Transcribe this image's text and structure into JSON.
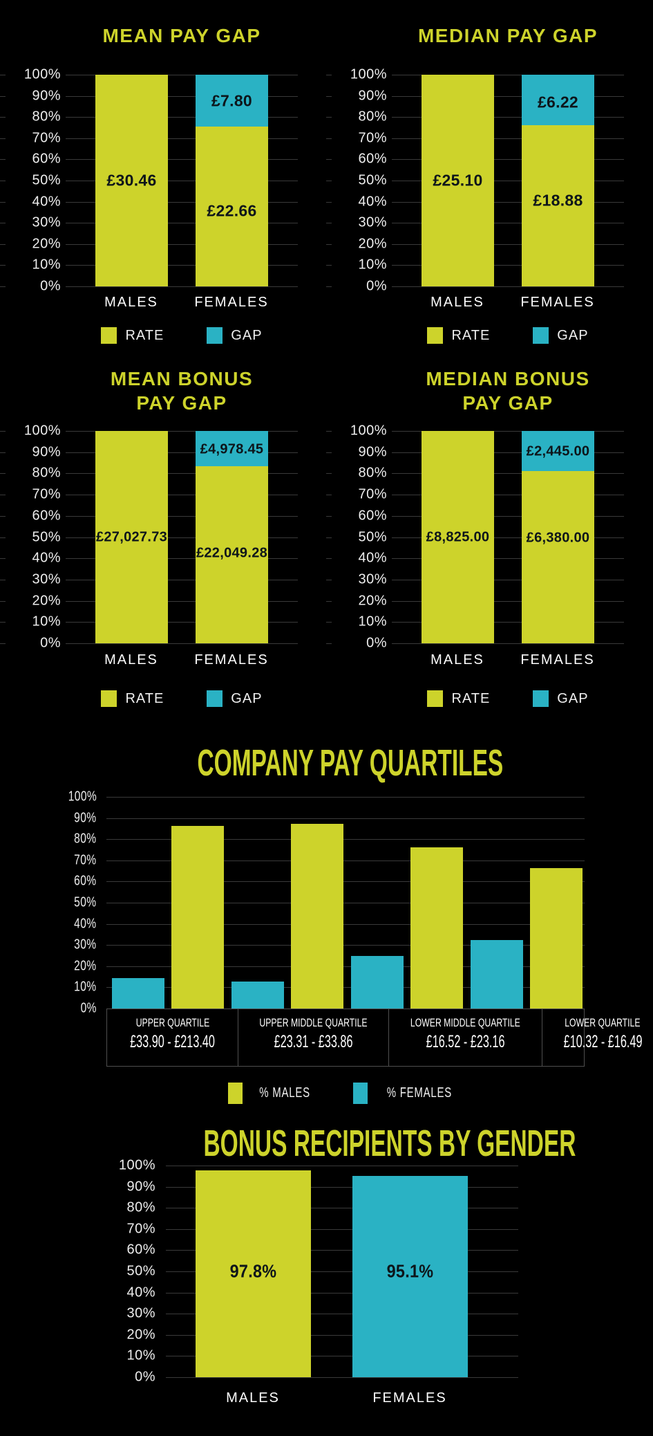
{
  "colors": {
    "yellow": "#cdd32b",
    "blue": "#2ab2c4",
    "background": "#000000",
    "grid": "#3a3a3a",
    "tick_text": "#ededed",
    "value_text": "#0d151a",
    "box_border": "#4f4f4f"
  },
  "axis": {
    "ticks": [
      "100%",
      "90%",
      "80%",
      "70%",
      "60%",
      "50%",
      "40%",
      "30%",
      "20%",
      "10%",
      "0%"
    ]
  },
  "panels": {
    "mean_pay": {
      "title": "MEAN PAY GAP",
      "x_labels": [
        "MALES",
        "FEMALES"
      ],
      "legend": [
        {
          "label": "RATE",
          "color": "yellow"
        },
        {
          "label": "GAP",
          "color": "blue"
        }
      ],
      "bars": {
        "male": {
          "label": "£30.46",
          "pct": 100
        },
        "female": {
          "rate_label": "£22.66",
          "rate_pct": 75.5,
          "gap_label": "£7.80",
          "gap_pct": 24.5
        }
      }
    },
    "median_pay": {
      "title": "MEDIAN PAY GAP",
      "x_labels": [
        "MALES",
        "FEMALES"
      ],
      "legend": [
        {
          "label": "RATE",
          "color": "yellow"
        },
        {
          "label": "GAP",
          "color": "blue"
        }
      ],
      "bars": {
        "male": {
          "label": "£25.10",
          "pct": 100
        },
        "female": {
          "rate_label": "£18.88",
          "rate_pct": 76,
          "gap_label": "£6.22",
          "gap_pct": 24
        }
      }
    },
    "mean_bonus": {
      "title_line1": "MEAN BONUS",
      "title_line2": "PAY GAP",
      "x_labels": [
        "MALES",
        "FEMALES"
      ],
      "legend": [
        {
          "label": "RATE",
          "color": "yellow"
        },
        {
          "label": "GAP",
          "color": "blue"
        }
      ],
      "bars": {
        "male": {
          "label": "£27,027.73",
          "pct": 100
        },
        "female": {
          "rate_label": "£22,049.28",
          "rate_pct": 83.4,
          "gap_label": "£4,978.45",
          "gap_pct": 16.6
        }
      }
    },
    "median_bonus": {
      "title_line1": "MEDIAN BONUS",
      "title_line2": "PAY GAP",
      "x_labels": [
        "MALES",
        "FEMALES"
      ],
      "legend": [
        {
          "label": "RATE",
          "color": "yellow"
        },
        {
          "label": "GAP",
          "color": "blue"
        }
      ],
      "bars": {
        "male": {
          "label": "£8,825.00",
          "pct": 100
        },
        "female": {
          "rate_label": "£6,380.00",
          "rate_pct": 81,
          "gap_label": "£2,445.00",
          "gap_pct": 19
        }
      }
    },
    "quartiles": {
      "title": "COMPANY PAY QUARTILES",
      "legend": [
        {
          "label": "% MALES",
          "color": "yellow"
        },
        {
          "label": "% FEMALES",
          "color": "blue"
        }
      ],
      "groups": [
        {
          "name": "UPPER QUARTILE",
          "range": "£33.90 - £213.40",
          "females_pct": 14.4,
          "males_pct": 86.4
        },
        {
          "name": "UPPER MIDDLE QUARTILE",
          "range": "£23.31 - £33.86",
          "females_pct": 12.6,
          "males_pct": 87.4
        },
        {
          "name": "LOWER MIDDLE QUARTILE",
          "range": "£16.52 - £23.16",
          "females_pct": 25.0,
          "males_pct": 76.2
        },
        {
          "name": "LOWER QUARTILE",
          "range": "£10.32 - £16.49",
          "females_pct": 32.5,
          "males_pct": 66.5
        }
      ]
    },
    "bonus_recipients": {
      "title": "BONUS RECIPIENTS BY GENDER",
      "x_labels": [
        "MALES",
        "FEMALES"
      ],
      "bars": {
        "male": {
          "label": "97.8%",
          "pct": 97.8
        },
        "female": {
          "label": "95.1%",
          "pct": 95.1
        }
      }
    }
  },
  "chart_data": [
    {
      "type": "bar",
      "variant": "stacked-normalized-100pct",
      "title": "MEAN PAY GAP",
      "categories": [
        "MALES",
        "FEMALES"
      ],
      "series": [
        {
          "name": "RATE",
          "color": "#cdd32b",
          "values": [
            30.46,
            22.66
          ],
          "labels": [
            "£30.46",
            "£22.66"
          ]
        },
        {
          "name": "GAP",
          "color": "#2ab2c4",
          "values": [
            null,
            7.8
          ],
          "labels": [
            null,
            "£7.80"
          ]
        }
      ],
      "y_ticks": [
        "0%",
        "10%",
        "20%",
        "30%",
        "40%",
        "50%",
        "60%",
        "70%",
        "80%",
        "90%",
        "100%"
      ],
      "ylim": [
        0,
        100
      ],
      "grid": true,
      "legend_position": "bottom",
      "drawn_female_rate_pct": 75.5
    },
    {
      "type": "bar",
      "variant": "stacked-normalized-100pct",
      "title": "MEDIAN PAY GAP",
      "categories": [
        "MALES",
        "FEMALES"
      ],
      "series": [
        {
          "name": "RATE",
          "color": "#cdd32b",
          "values": [
            25.1,
            18.88
          ],
          "labels": [
            "£25.10",
            "£18.88"
          ]
        },
        {
          "name": "GAP",
          "color": "#2ab2c4",
          "values": [
            null,
            6.22
          ],
          "labels": [
            null,
            "£6.22"
          ]
        }
      ],
      "y_ticks": [
        "0%",
        "10%",
        "20%",
        "30%",
        "40%",
        "50%",
        "60%",
        "70%",
        "80%",
        "90%",
        "100%"
      ],
      "ylim": [
        0,
        100
      ],
      "grid": true,
      "legend_position": "bottom",
      "drawn_female_rate_pct": 76
    },
    {
      "type": "bar",
      "variant": "stacked-normalized-100pct",
      "title": "MEAN BONUS PAY GAP",
      "categories": [
        "MALES",
        "FEMALES"
      ],
      "series": [
        {
          "name": "RATE",
          "color": "#cdd32b",
          "values": [
            27027.73,
            22049.28
          ],
          "labels": [
            "£27,027.73",
            "£22,049.28"
          ]
        },
        {
          "name": "GAP",
          "color": "#2ab2c4",
          "values": [
            null,
            4978.45
          ],
          "labels": [
            null,
            "£4,978.45"
          ]
        }
      ],
      "y_ticks": [
        "0%",
        "10%",
        "20%",
        "30%",
        "40%",
        "50%",
        "60%",
        "70%",
        "80%",
        "90%",
        "100%"
      ],
      "ylim": [
        0,
        100
      ],
      "grid": true,
      "legend_position": "bottom",
      "drawn_female_rate_pct": 83.4
    },
    {
      "type": "bar",
      "variant": "stacked-normalized-100pct",
      "title": "MEDIAN BONUS PAY GAP",
      "categories": [
        "MALES",
        "FEMALES"
      ],
      "series": [
        {
          "name": "RATE",
          "color": "#cdd32b",
          "values": [
            8825.0,
            6380.0
          ],
          "labels": [
            "£8,825.00",
            "£6,380.00"
          ]
        },
        {
          "name": "GAP",
          "color": "#2ab2c4",
          "values": [
            null,
            2445.0
          ],
          "labels": [
            null,
            "£2,445.00"
          ]
        }
      ],
      "y_ticks": [
        "0%",
        "10%",
        "20%",
        "30%",
        "40%",
        "50%",
        "60%",
        "70%",
        "80%",
        "90%",
        "100%"
      ],
      "ylim": [
        0,
        100
      ],
      "grid": true,
      "legend_position": "bottom",
      "drawn_female_rate_pct": 81
    },
    {
      "type": "bar",
      "variant": "grouped",
      "title": "COMPANY PAY QUARTILES",
      "categories": [
        "UPPER QUARTILE £33.90 - £213.40",
        "UPPER MIDDLE QUARTILE £23.31 - £33.86",
        "LOWER MIDDLE QUARTILE £16.52 - £23.16",
        "LOWER QUARTILE £10.32 - £16.49"
      ],
      "series": [
        {
          "name": "% FEMALES",
          "color": "#2ab2c4",
          "values": [
            14.4,
            12.6,
            25.0,
            32.5
          ]
        },
        {
          "name": "% MALES",
          "color": "#cdd32b",
          "values": [
            86.4,
            87.4,
            76.2,
            66.5
          ]
        }
      ],
      "bar_order_left_to_right": [
        "% FEMALES",
        "% MALES"
      ],
      "y_ticks": [
        "0%",
        "10%",
        "20%",
        "30%",
        "40%",
        "50%",
        "60%",
        "70%",
        "80%",
        "90%",
        "100%"
      ],
      "ylim": [
        0,
        100
      ],
      "grid": true,
      "legend_position": "bottom",
      "note": "values estimated from bar heights"
    },
    {
      "type": "bar",
      "title": "BONUS RECIPIENTS BY GENDER",
      "categories": [
        "MALES",
        "FEMALES"
      ],
      "values": [
        97.8,
        95.1
      ],
      "labels": [
        "97.8%",
        "95.1%"
      ],
      "colors": [
        "#cdd32b",
        "#2ab2c4"
      ],
      "y_ticks": [
        "0%",
        "10%",
        "20%",
        "30%",
        "40%",
        "50%",
        "60%",
        "70%",
        "80%",
        "90%",
        "100%"
      ],
      "ylim": [
        0,
        100
      ],
      "grid": true
    }
  ]
}
